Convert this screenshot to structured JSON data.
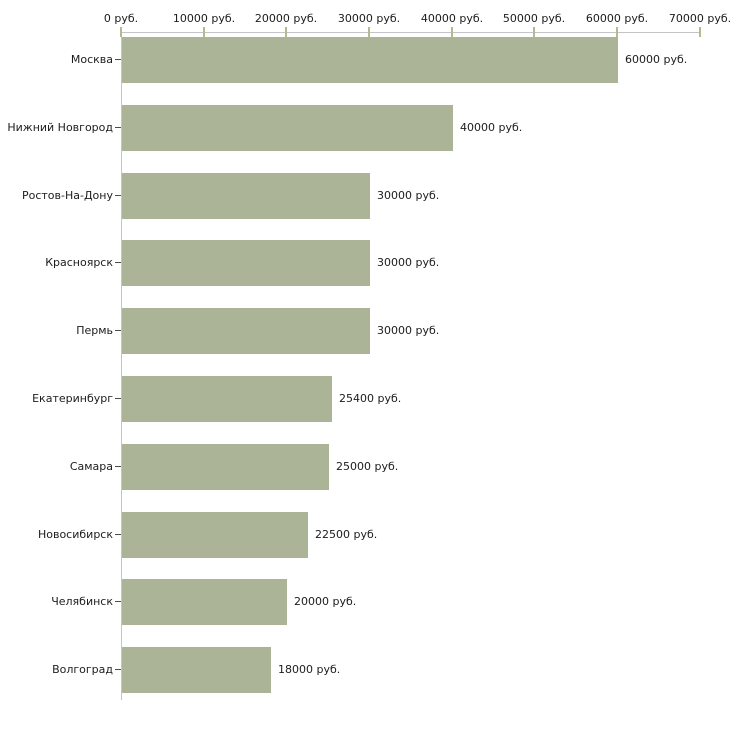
{
  "chart_data": {
    "type": "bar",
    "orientation": "horizontal",
    "title": "",
    "xlabel": "",
    "ylabel": "",
    "unit": "руб.",
    "categories": [
      "Москва",
      "Нижний Новгород",
      "Ростов-На-Дону",
      "Красноярск",
      "Пермь",
      "Екатеринбург",
      "Самара",
      "Новосибирск",
      "Челябинск",
      "Волгоград"
    ],
    "values": [
      60000,
      40000,
      30000,
      30000,
      30000,
      25400,
      25000,
      22500,
      20000,
      18000
    ],
    "value_labels": [
      "60000 руб.",
      "40000 руб.",
      "30000 руб.",
      "30000 руб.",
      "30000 руб.",
      "25400 руб.",
      "25000 руб.",
      "22500 руб.",
      "20000 руб.",
      "18000 руб."
    ],
    "x_axis": {
      "position": "top",
      "min": 0,
      "max": 70000,
      "ticks": [
        0,
        10000,
        20000,
        30000,
        40000,
        50000,
        60000,
        70000
      ],
      "tick_labels": [
        "0 руб.",
        "10000 руб.",
        "20000 руб.",
        "30000 руб.",
        "40000 руб.",
        "50000 руб.",
        "60000 руб.",
        "70000 руб."
      ]
    },
    "grid": "off",
    "legend": "none",
    "colors": {
      "bar": "#acb497",
      "axis_line": "#c4c4c4",
      "x_tick": "#b5b98c",
      "y_tick": "#4d4d4d",
      "text": "#1c1c1c",
      "background": "#ffffff"
    }
  }
}
